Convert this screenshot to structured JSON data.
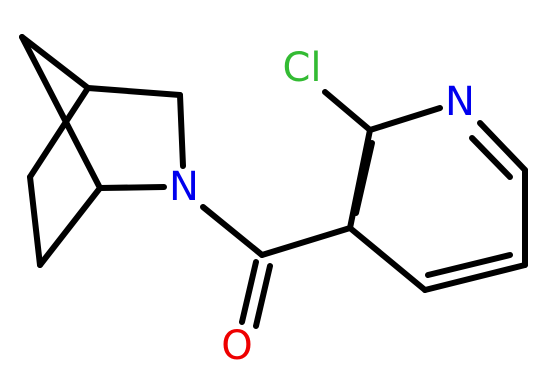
{
  "atoms": [
    {
      "label": "Cl"
    },
    {
      "label": "N"
    },
    {
      "label": "N"
    },
    {
      "label": "O"
    }
  ]
}
